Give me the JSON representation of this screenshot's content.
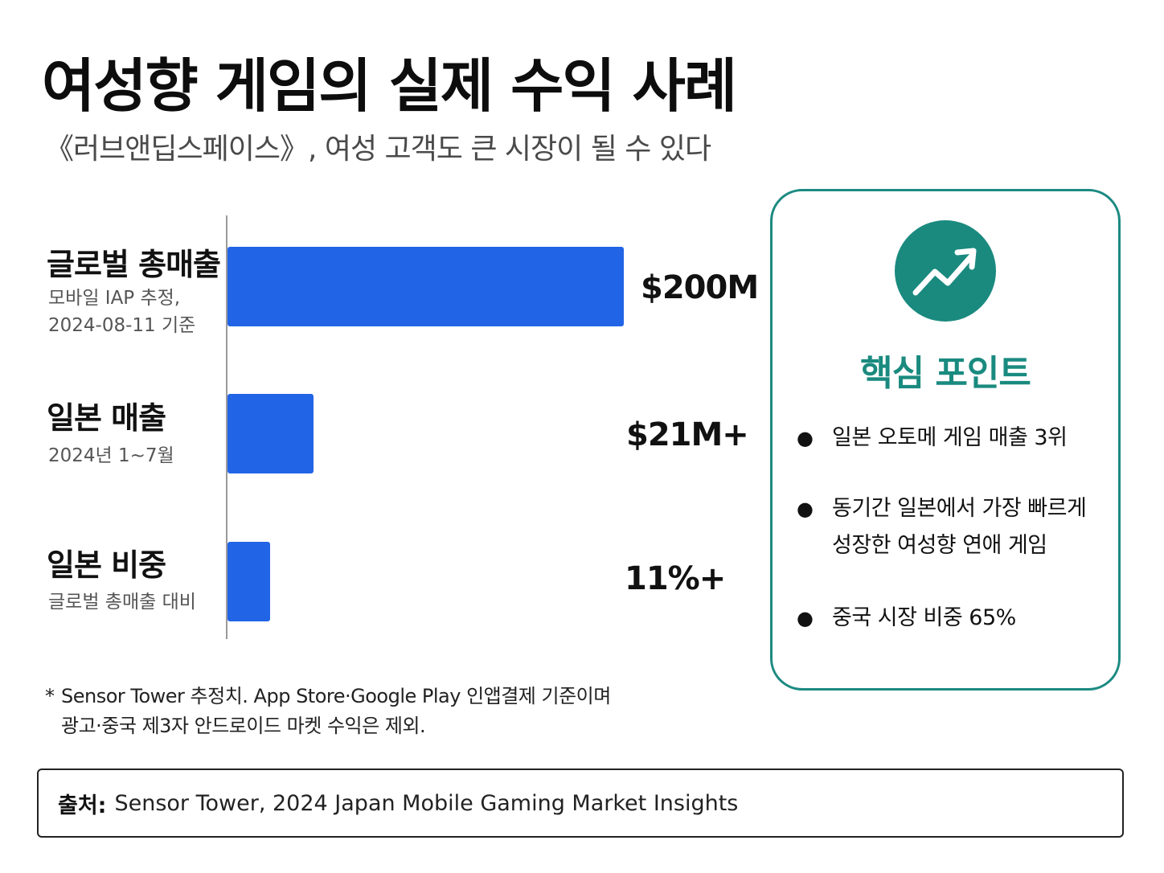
{
  "title": "여성향 게임의 실제 수익 사례",
  "subtitle": "《러브앤딥스페이스》, 여성 고객도 큰 시장이 될 수 있다",
  "chart_data": {
    "type": "bar",
    "orientation": "horizontal",
    "categories": [
      "글로벌 총매출",
      "일본 매출",
      "일본 비중"
    ],
    "category_notes": [
      "모바일 IAP 추정,\n2024-08-11 기준",
      "2024년 1~7월",
      "글로벌 총매출 대비"
    ],
    "values": [
      200,
      21,
      11
    ],
    "value_labels": [
      "$200M",
      "$21M+",
      "11%+"
    ],
    "units": [
      "USD million",
      "USD million",
      "percent"
    ],
    "bar_color": "#2264e6",
    "grid": false,
    "legend": "none"
  },
  "note": {
    "mark": "*",
    "lines": [
      "Sensor Tower 추정치. App Store·Google Play 인앱결제 기준이며",
      "광고·중국 제3자 안드로이드 마켓 수익은 제외."
    ]
  },
  "source": {
    "label": "출처:",
    "text": "Sensor Tower, 2024 Japan Mobile Gaming Market Insights"
  },
  "card": {
    "icon": "trending-up-icon",
    "title": "핵심 포인트",
    "accent": "#1a8a7f",
    "bullet": "●",
    "points": [
      "일본 오토메 게임 매출 3위",
      "동기간 일본에서 가장 빠르게 성장한 여성향 연애 게임",
      "중국 시장 비중 65%"
    ]
  }
}
